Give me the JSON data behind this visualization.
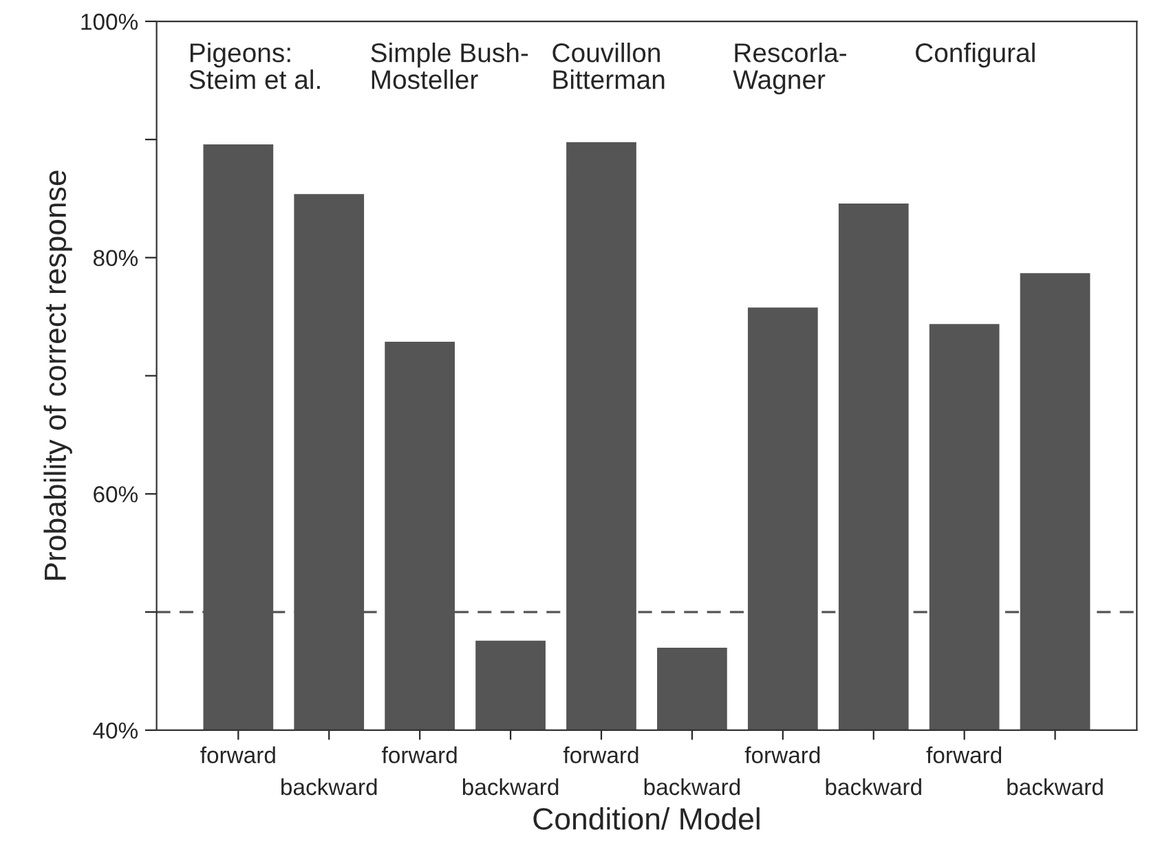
{
  "chart_data": {
    "type": "bar",
    "xlabel": "Condition/ Model",
    "ylabel": "Probability of correct response",
    "categories": [
      "forward",
      "backward",
      "forward",
      "backward",
      "forward",
      "backward",
      "forward",
      "backward",
      "forward",
      "backward"
    ],
    "values": [
      89.5,
      85.3,
      72.8,
      47.5,
      89.7,
      46.9,
      75.7,
      84.5,
      74.3,
      78.6
    ],
    "color": "#555555",
    "ylim": [
      40,
      100
    ],
    "yticks": [
      {
        "value": 40,
        "label": "40%"
      },
      {
        "value": 50,
        "label": null
      },
      {
        "value": 60,
        "label": "60%"
      },
      {
        "value": 70,
        "label": null
      },
      {
        "value": 80,
        "label": "80%"
      },
      {
        "value": 90,
        "label": null
      },
      {
        "value": 100,
        "label": "100%"
      }
    ],
    "ref_lines": [
      {
        "axis": "y",
        "value": 50,
        "line_style": "dashed",
        "color": "#555555"
      }
    ],
    "annotations": [
      "Pigeons:\nSteim et al.",
      "Simple Bush-\nMosteller",
      "Couvillon\nBitterman",
      "Rescorla-\nWagner",
      "Configural"
    ],
    "grid": false,
    "legend": false
  }
}
